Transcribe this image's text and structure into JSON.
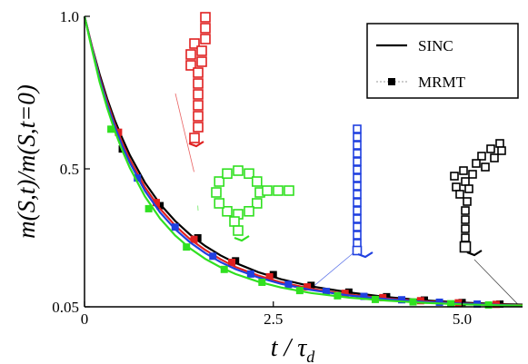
{
  "chart_data": {
    "type": "line",
    "xlabel": "t / τ",
    "xlabel_parts": {
      "main": "t / τ",
      "sub": "d"
    },
    "ylabel": "m(S,t)/m(S,t=0)",
    "xlim": [
      0,
      5.8
    ],
    "ylim": [
      0.05,
      1.0
    ],
    "x_ticks": [
      0,
      2.5,
      5.0
    ],
    "x_tick_labels": [
      "0",
      "2.5",
      "5.0"
    ],
    "y_ticks": [
      0.05,
      0.5,
      1.0
    ],
    "y_tick_labels": [
      "0.05",
      "0.5",
      "1.0"
    ],
    "grid": false,
    "legend": {
      "position": "top-right",
      "entries": [
        {
          "label": "SINC",
          "style": "line"
        },
        {
          "label": "MRMT",
          "style": "marker-square"
        }
      ]
    },
    "series": [
      {
        "color": "#000000",
        "curve": [
          [
            0,
            1.0
          ],
          [
            0.1,
            0.9
          ],
          [
            0.2,
            0.81
          ],
          [
            0.3,
            0.73
          ],
          [
            0.4,
            0.66
          ],
          [
            0.5,
            0.6
          ],
          [
            0.6,
            0.545
          ],
          [
            0.8,
            0.455
          ],
          [
            1.0,
            0.385
          ],
          [
            1.2,
            0.33
          ],
          [
            1.4,
            0.285
          ],
          [
            1.6,
            0.248
          ],
          [
            1.8,
            0.218
          ],
          [
            2.0,
            0.193
          ],
          [
            2.3,
            0.163
          ],
          [
            2.6,
            0.14
          ],
          [
            3.0,
            0.117
          ],
          [
            3.5,
            0.097
          ],
          [
            4.0,
            0.082
          ],
          [
            4.5,
            0.071
          ],
          [
            5.0,
            0.064
          ],
          [
            5.5,
            0.059
          ],
          [
            5.8,
            0.057
          ]
        ],
        "markers": [
          [
            0.5,
            0.565
          ],
          [
            1.0,
            0.38
          ],
          [
            1.5,
            0.275
          ],
          [
            2.0,
            0.2
          ],
          [
            2.5,
            0.155
          ],
          [
            3.0,
            0.12
          ],
          [
            3.5,
            0.098
          ],
          [
            4.0,
            0.083
          ],
          [
            4.5,
            0.072
          ],
          [
            5.0,
            0.064
          ],
          [
            5.5,
            0.059
          ]
        ]
      },
      {
        "color": "#e02020",
        "curve": [
          [
            0,
            1.0
          ],
          [
            0.1,
            0.9
          ],
          [
            0.2,
            0.8
          ],
          [
            0.3,
            0.72
          ],
          [
            0.4,
            0.648
          ],
          [
            0.5,
            0.585
          ],
          [
            0.6,
            0.53
          ],
          [
            0.8,
            0.44
          ],
          [
            1.0,
            0.37
          ],
          [
            1.2,
            0.315
          ],
          [
            1.4,
            0.27
          ],
          [
            1.6,
            0.235
          ],
          [
            1.8,
            0.205
          ],
          [
            2.0,
            0.18
          ],
          [
            2.3,
            0.152
          ],
          [
            2.6,
            0.13
          ],
          [
            3.0,
            0.109
          ],
          [
            3.5,
            0.09
          ],
          [
            4.0,
            0.077
          ],
          [
            4.5,
            0.068
          ],
          [
            5.0,
            0.061
          ],
          [
            5.5,
            0.057
          ],
          [
            5.8,
            0.055
          ]
        ],
        "markers": [
          [
            0.45,
            0.62
          ],
          [
            0.95,
            0.39
          ],
          [
            1.45,
            0.27
          ],
          [
            1.95,
            0.195
          ],
          [
            2.45,
            0.148
          ],
          [
            2.95,
            0.115
          ],
          [
            3.45,
            0.094
          ],
          [
            3.95,
            0.08
          ],
          [
            4.45,
            0.07
          ],
          [
            4.95,
            0.063
          ],
          [
            5.45,
            0.058
          ]
        ]
      },
      {
        "color": "#2040e0",
        "curve": [
          [
            0,
            1.0
          ],
          [
            0.1,
            0.895
          ],
          [
            0.2,
            0.795
          ],
          [
            0.3,
            0.712
          ],
          [
            0.4,
            0.64
          ],
          [
            0.5,
            0.575
          ],
          [
            0.6,
            0.52
          ],
          [
            0.8,
            0.428
          ],
          [
            1.0,
            0.358
          ],
          [
            1.2,
            0.303
          ],
          [
            1.4,
            0.26
          ],
          [
            1.6,
            0.225
          ],
          [
            1.8,
            0.196
          ],
          [
            2.0,
            0.173
          ],
          [
            2.3,
            0.146
          ],
          [
            2.6,
            0.125
          ],
          [
            3.0,
            0.105
          ],
          [
            3.5,
            0.087
          ],
          [
            4.0,
            0.075
          ],
          [
            4.5,
            0.066
          ],
          [
            5.0,
            0.06
          ],
          [
            5.5,
            0.056
          ],
          [
            5.8,
            0.054
          ]
        ],
        "markers": [
          [
            0.7,
            0.47
          ],
          [
            1.2,
            0.31
          ],
          [
            1.7,
            0.215
          ],
          [
            2.2,
            0.157
          ],
          [
            2.7,
            0.123
          ],
          [
            3.2,
            0.1
          ],
          [
            3.7,
            0.084
          ],
          [
            4.2,
            0.073
          ],
          [
            4.7,
            0.065
          ],
          [
            5.2,
            0.059
          ]
        ]
      },
      {
        "color": "#30e020",
        "curve": [
          [
            0,
            1.0
          ],
          [
            0.1,
            0.89
          ],
          [
            0.2,
            0.785
          ],
          [
            0.3,
            0.7
          ],
          [
            0.4,
            0.625
          ],
          [
            0.5,
            0.56
          ],
          [
            0.6,
            0.503
          ],
          [
            0.8,
            0.41
          ],
          [
            1.0,
            0.338
          ],
          [
            1.2,
            0.283
          ],
          [
            1.4,
            0.24
          ],
          [
            1.6,
            0.206
          ],
          [
            1.8,
            0.179
          ],
          [
            2.0,
            0.157
          ],
          [
            2.3,
            0.132
          ],
          [
            2.6,
            0.113
          ],
          [
            3.0,
            0.095
          ],
          [
            3.5,
            0.08
          ],
          [
            4.0,
            0.07
          ],
          [
            4.5,
            0.063
          ],
          [
            5.0,
            0.058
          ],
          [
            5.5,
            0.055
          ],
          [
            5.8,
            0.054
          ]
        ],
        "markers": [
          [
            0.35,
            0.63
          ],
          [
            0.85,
            0.37
          ],
          [
            1.35,
            0.245
          ],
          [
            1.85,
            0.172
          ],
          [
            2.35,
            0.13
          ],
          [
            2.85,
            0.103
          ],
          [
            3.35,
            0.086
          ],
          [
            3.85,
            0.074
          ],
          [
            4.35,
            0.066
          ],
          [
            4.85,
            0.06
          ],
          [
            5.35,
            0.056
          ]
        ]
      }
    ],
    "insets": [
      {
        "name": "red-polymer-inset",
        "color": "#e02020",
        "pointer_to": [
          1.45,
          0.49
        ]
      },
      {
        "name": "green-polymer-inset",
        "color": "#30e020",
        "pointer_to": [
          1.5,
          0.38
        ]
      },
      {
        "name": "blue-polymer-inset",
        "color": "#2040e0",
        "pointer_to": [
          3.0,
          0.11
        ]
      },
      {
        "name": "black-polymer-inset",
        "color": "#000000",
        "pointer_to": [
          5.75,
          0.055
        ]
      }
    ]
  }
}
